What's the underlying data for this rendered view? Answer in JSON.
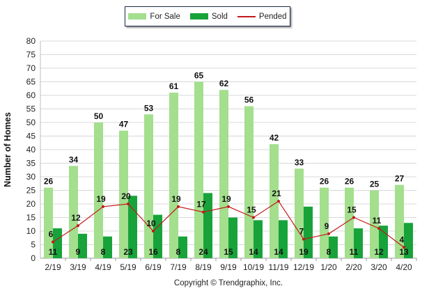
{
  "legend": {
    "items": [
      {
        "name": "For Sale",
        "kind": "bar",
        "color": "#a3df8d"
      },
      {
        "name": "Sold",
        "kind": "bar",
        "color": "#17a33a"
      },
      {
        "name": "Pended",
        "kind": "line",
        "color": "#c11a1a"
      }
    ]
  },
  "copyright": "Copyright © Trendgraphix, Inc.",
  "chart_data": {
    "type": "bar",
    "title": "",
    "xlabel": "",
    "ylabel": "Number of Homes",
    "ylim": [
      0,
      80
    ],
    "yticks": [
      0,
      5,
      10,
      15,
      20,
      25,
      30,
      35,
      40,
      45,
      50,
      55,
      60,
      65,
      70,
      75,
      80
    ],
    "grid": true,
    "legend_position": "top-center",
    "categories": [
      "2/19",
      "3/19",
      "4/19",
      "5/19",
      "6/19",
      "7/19",
      "8/19",
      "9/19",
      "10/19",
      "11/19",
      "12/19",
      "1/20",
      "2/20",
      "3/20",
      "4/20"
    ],
    "series": [
      {
        "name": "For Sale",
        "type": "bar",
        "color": "#a3df8d",
        "values": [
          26,
          34,
          50,
          47,
          53,
          61,
          65,
          62,
          56,
          42,
          33,
          26,
          26,
          25,
          27
        ]
      },
      {
        "name": "Sold",
        "type": "bar",
        "color": "#17a33a",
        "values": [
          11,
          9,
          8,
          23,
          16,
          8,
          24,
          15,
          14,
          14,
          19,
          8,
          11,
          12,
          13
        ]
      },
      {
        "name": "Pended",
        "type": "line",
        "color": "#c11a1a",
        "values": [
          6,
          12,
          19,
          20,
          10,
          19,
          17,
          19,
          15,
          21,
          7,
          9,
          15,
          11,
          4
        ]
      }
    ]
  }
}
